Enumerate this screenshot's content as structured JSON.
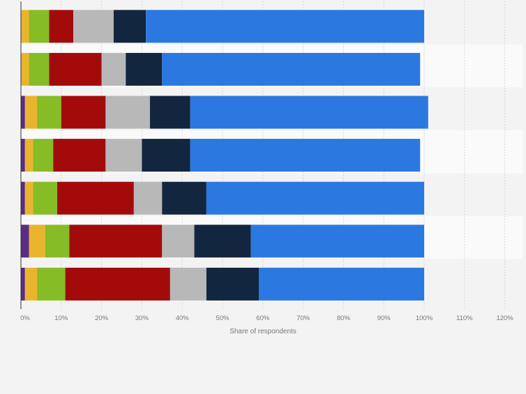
{
  "chart_data": {
    "type": "bar",
    "orientation": "horizontal",
    "stacked": true,
    "title": "",
    "xlabel": "Share of respondents",
    "ylabel": "",
    "xlim": [
      0,
      120
    ],
    "x_ticks": [
      "0%",
      "10%",
      "20%",
      "30%",
      "40%",
      "50%",
      "60%",
      "70%",
      "80%",
      "90%",
      "100%",
      "110%",
      "120%"
    ],
    "grid": true,
    "legend": "none",
    "categories": [
      "",
      "",
      "",
      "",
      "",
      "",
      ""
    ],
    "series": [
      {
        "color": "#5b2c83",
        "values": [
          0,
          0,
          1,
          1,
          1,
          2,
          1
        ]
      },
      {
        "color": "#e9b52d",
        "values": [
          2,
          2,
          3,
          2,
          2,
          4,
          3
        ]
      },
      {
        "color": "#86bc25",
        "values": [
          5,
          5,
          6,
          5,
          6,
          6,
          7
        ]
      },
      {
        "color": "#a30b0b",
        "values": [
          6,
          13,
          11,
          13,
          19,
          23,
          26
        ]
      },
      {
        "color": "#b8b8b8",
        "values": [
          10,
          6,
          11,
          9,
          7,
          8,
          9
        ]
      },
      {
        "color": "#13263f",
        "values": [
          8,
          9,
          10,
          12,
          11,
          14,
          13
        ]
      },
      {
        "color": "#2b78e0",
        "values": [
          69,
          64,
          59,
          57,
          54,
          43,
          41
        ]
      }
    ]
  },
  "colors": {
    "band_dark": "#f3f3f3",
    "band_light": "#fafafa",
    "grid": "#d6d6d6",
    "axis": "#333333",
    "tick_text": "#777777"
  }
}
